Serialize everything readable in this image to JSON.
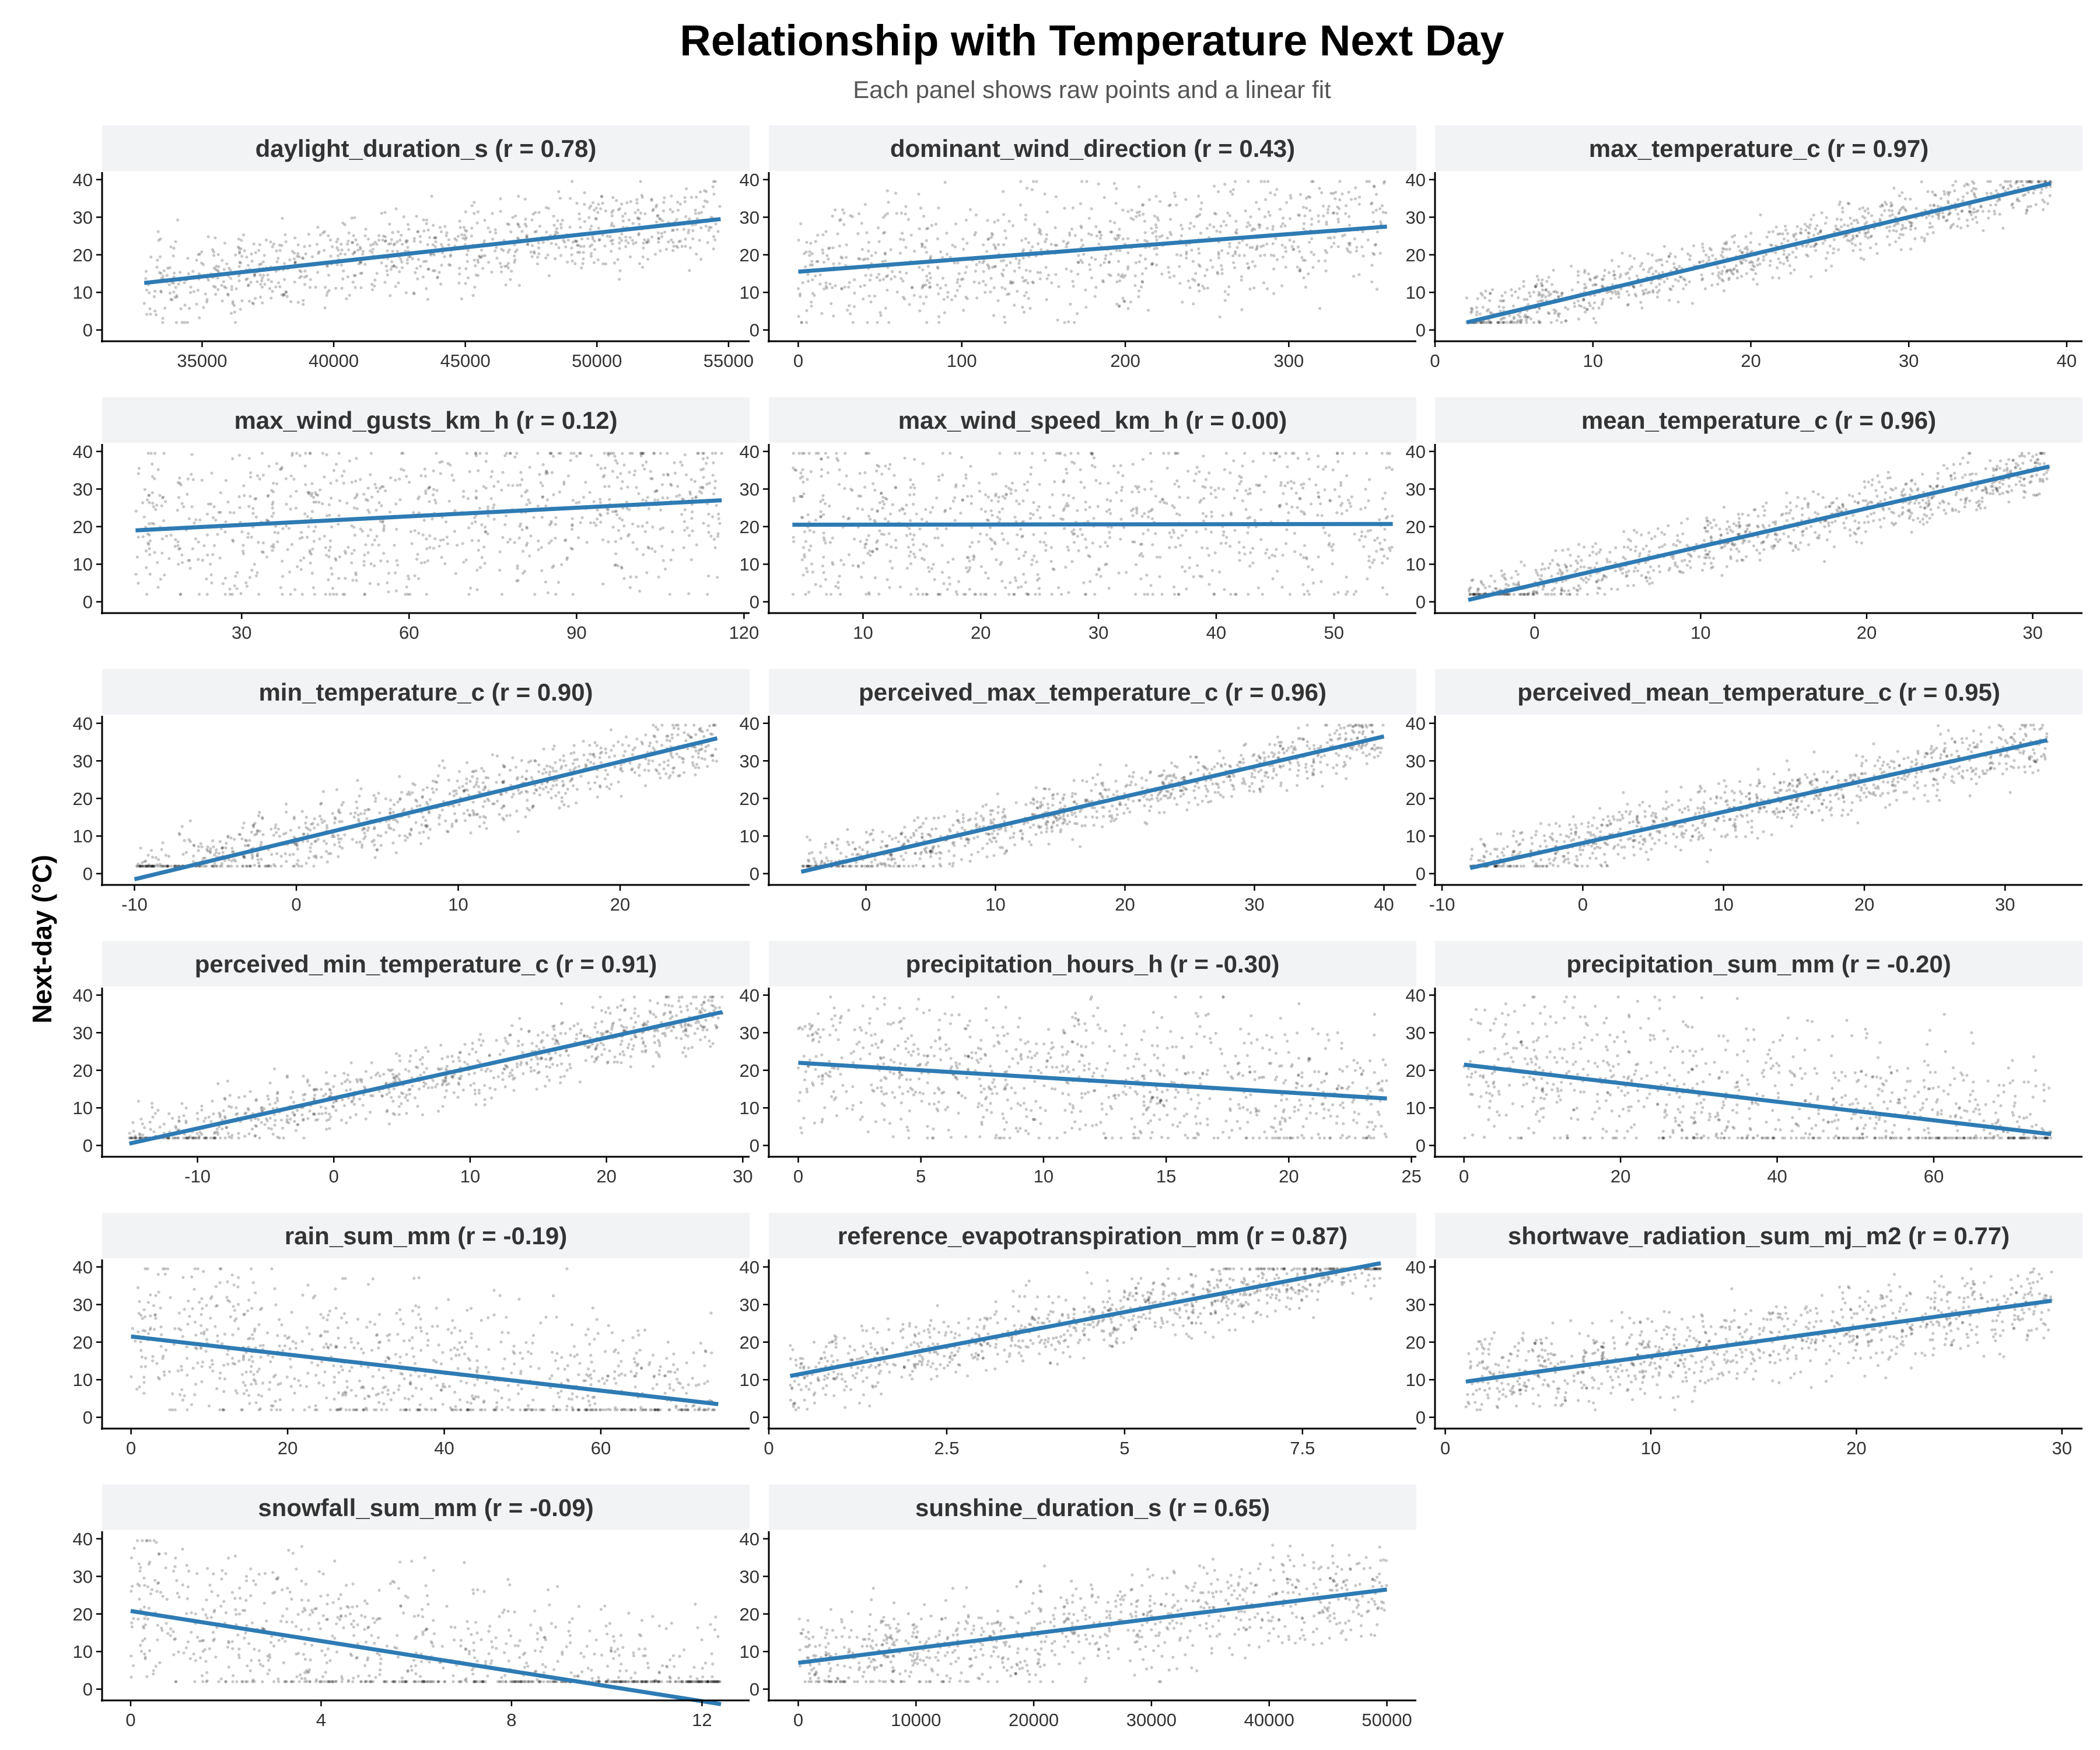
{
  "chart_data": {
    "type": "scatter",
    "title": "Relationship with Temperature Next Day",
    "subtitle": "Each panel shows raw points and a linear fit",
    "ylabel": "Next-day (°C)",
    "colors": {
      "points": "#000000",
      "fit_line": "#2e7bb4",
      "strip": "#f2f3f5",
      "axis": "#000000"
    },
    "shared_y": {
      "ylim": [
        -3,
        42
      ],
      "ticks": [
        0,
        10,
        20,
        30,
        40
      ]
    },
    "panels": [
      {
        "name": "daylight_duration_s",
        "strip_label": "daylight_duration_s (r = 0.78)",
        "r": 0.78,
        "xlim": [
          31200,
          55800
        ],
        "xticks": [
          35000,
          40000,
          45000,
          50000,
          55000
        ],
        "x_range": [
          32800,
          54700
        ],
        "fit": {
          "x": [
            32800,
            54700
          ],
          "y": [
            12.5,
            29.5
          ]
        }
      },
      {
        "name": "dominant_wind_direction",
        "strip_label": "dominant_wind_direction (r = 0.43)",
        "r": 0.43,
        "xlim": [
          -18,
          378
        ],
        "xticks": [
          0,
          100,
          200,
          300
        ],
        "x_range": [
          0,
          360
        ],
        "fit": {
          "x": [
            0,
            360
          ],
          "y": [
            15.5,
            27.5
          ]
        }
      },
      {
        "name": "max_temperature_c",
        "strip_label": "max_temperature_c (r = 0.97)",
        "r": 0.97,
        "xlim": [
          0,
          41
        ],
        "xticks": [
          0,
          10,
          20,
          30,
          40
        ],
        "x_range": [
          2,
          39
        ],
        "fit": {
          "x": [
            2,
            39
          ],
          "y": [
            2,
            39
          ]
        }
      },
      {
        "name": "max_wind_gusts_km_h",
        "strip_label": "max_wind_gusts_km_h (r = 0.12)",
        "r": 0.12,
        "xlim": [
          5,
          121
        ],
        "xticks": [
          30,
          60,
          90,
          120
        ],
        "x_range": [
          11,
          116
        ],
        "fit": {
          "x": [
            11,
            116
          ],
          "y": [
            19,
            27
          ]
        }
      },
      {
        "name": "max_wind_speed_km_h",
        "strip_label": "max_wind_speed_km_h (r = 0.00)",
        "r": 0.0,
        "xlim": [
          2,
          57
        ],
        "xticks": [
          10,
          20,
          30,
          40,
          50
        ],
        "x_range": [
          4,
          55
        ],
        "fit": {
          "x": [
            4,
            55
          ],
          "y": [
            20.5,
            20.7
          ]
        }
      },
      {
        "name": "mean_temperature_c",
        "strip_label": "mean_temperature_c (r = 0.96)",
        "r": 0.96,
        "xlim": [
          -6,
          33
        ],
        "xticks": [
          0,
          10,
          20,
          30
        ],
        "x_range": [
          -4,
          31
        ],
        "fit": {
          "x": [
            -4,
            31
          ],
          "y": [
            0.5,
            36
          ]
        }
      },
      {
        "name": "min_temperature_c",
        "strip_label": "min_temperature_c (r = 0.90)",
        "r": 0.9,
        "xlim": [
          -12,
          28
        ],
        "xticks": [
          -10,
          0,
          10,
          20
        ],
        "x_range": [
          -10,
          26
        ],
        "fit": {
          "x": [
            -10,
            26
          ],
          "y": [
            -1.5,
            36
          ]
        }
      },
      {
        "name": "perceived_max_temperature_c",
        "strip_label": "perceived_max_temperature_c (r = 0.96)",
        "r": 0.96,
        "xlim": [
          -7.5,
          42.5
        ],
        "xticks": [
          0,
          10,
          20,
          30,
          40
        ],
        "x_range": [
          -5,
          40
        ],
        "fit": {
          "x": [
            -5,
            40
          ],
          "y": [
            0.5,
            36.5
          ]
        }
      },
      {
        "name": "perceived_mean_temperature_c",
        "strip_label": "perceived_mean_temperature_c (r = 0.95)",
        "r": 0.95,
        "xlim": [
          -10.5,
          35.5
        ],
        "xticks": [
          -10,
          0,
          10,
          20,
          30
        ],
        "x_range": [
          -8,
          33
        ],
        "fit": {
          "x": [
            -8,
            33
          ],
          "y": [
            1.5,
            35.5
          ]
        }
      },
      {
        "name": "perceived_min_temperature_c",
        "strip_label": "perceived_min_temperature_c (r = 0.91)",
        "r": 0.91,
        "xlim": [
          -17,
          30.5
        ],
        "xticks": [
          -10,
          0,
          10,
          20,
          30
        ],
        "x_range": [
          -15,
          28.5
        ],
        "fit": {
          "x": [
            -15,
            28.5
          ],
          "y": [
            0.5,
            35.5
          ]
        }
      },
      {
        "name": "precipitation_hours_h",
        "strip_label": "precipitation_hours_h (r = -0.30)",
        "r": -0.3,
        "xlim": [
          -1.2,
          25.2
        ],
        "xticks": [
          0,
          5,
          10,
          15,
          20,
          25
        ],
        "x_range": [
          0,
          24
        ],
        "fit": {
          "x": [
            0,
            24
          ],
          "y": [
            22,
            12.5
          ]
        }
      },
      {
        "name": "precipitation_sum_mm",
        "strip_label": "precipitation_sum_mm (r = -0.20)",
        "r": -0.2,
        "xlim": [
          -3.7,
          79
        ],
        "xticks": [
          0,
          20,
          40,
          60
        ],
        "x_range": [
          0,
          75
        ],
        "fit": {
          "x": [
            0,
            75
          ],
          "y": [
            21.5,
            3
          ]
        }
      },
      {
        "name": "rain_sum_mm",
        "strip_label": "rain_sum_mm (r = -0.19)",
        "r": -0.19,
        "xlim": [
          -3.7,
          79
        ],
        "xticks": [
          0,
          20,
          40,
          60
        ],
        "x_range": [
          0,
          75
        ],
        "fit": {
          "x": [
            0,
            75
          ],
          "y": [
            21.5,
            3.5
          ]
        }
      },
      {
        "name": "reference_evapotranspiration_mm",
        "strip_label": "reference_evapotranspiration_mm (r = 0.87)",
        "r": 0.87,
        "xlim": [
          0,
          9.1
        ],
        "xticks": [
          0.0,
          2.5,
          5.0,
          7.5
        ],
        "x_range": [
          0.3,
          8.6
        ],
        "fit": {
          "x": [
            0.3,
            8.6
          ],
          "y": [
            11,
            41
          ]
        }
      },
      {
        "name": "shortwave_radiation_sum_mj_m2",
        "strip_label": "shortwave_radiation_sum_mj_m2 (r = 0.77)",
        "r": 0.77,
        "xlim": [
          -0.5,
          31
        ],
        "xticks": [
          0,
          10,
          20,
          30
        ],
        "x_range": [
          1,
          29.5
        ],
        "fit": {
          "x": [
            1,
            29.5
          ],
          "y": [
            9.5,
            31
          ]
        }
      },
      {
        "name": "snowfall_sum_mm",
        "strip_label": "snowfall_sum_mm (r = -0.09)",
        "r": -0.09,
        "xlim": [
          -0.6,
          13
        ],
        "xticks": [
          0,
          4,
          8,
          12
        ],
        "x_range": [
          0,
          12.4
        ],
        "fit": {
          "x": [
            0,
            12.4
          ],
          "y": [
            20.8,
            -4
          ]
        }
      },
      {
        "name": "sunshine_duration_s",
        "strip_label": "sunshine_duration_s (r = 0.65)",
        "r": 0.65,
        "xlim": [
          -2500,
          52500
        ],
        "xticks": [
          0,
          10000,
          20000,
          30000,
          40000,
          50000
        ],
        "x_range": [
          0,
          50000
        ],
        "fit": {
          "x": [
            0,
            50000
          ],
          "y": [
            7,
            26.5
          ]
        }
      }
    ]
  }
}
